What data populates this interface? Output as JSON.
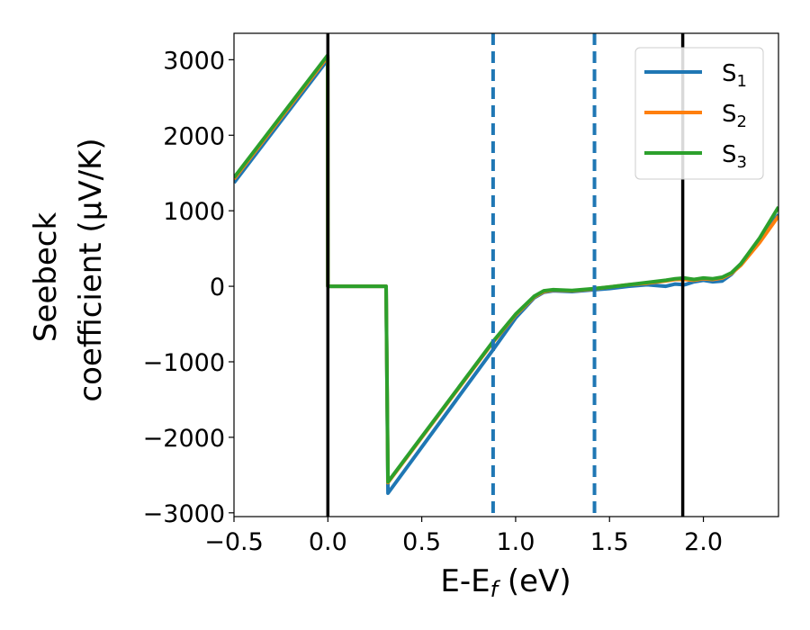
{
  "chart_data": {
    "type": "line",
    "title": "",
    "xlabel": "E-E",
    "xlabel_sub": "f",
    "xlabel_unit": " (eV)",
    "ylabel_line1": "Seebeck",
    "ylabel_line2": "coefficient  (μV/K)",
    "xlim": [
      -0.5,
      2.4
    ],
    "ylim": [
      -3050,
      3350
    ],
    "xticks": [
      -0.5,
      0.0,
      0.5,
      1.0,
      1.5,
      2.0
    ],
    "xtick_labels": [
      "−0.5",
      "0.0",
      "0.5",
      "1.0",
      "1.5",
      "2.0"
    ],
    "yticks": [
      -3000,
      -2000,
      -1000,
      0,
      1000,
      2000,
      3000
    ],
    "ytick_labels": [
      "−3000",
      "−2000",
      "−1000",
      "0",
      "1000",
      "2000",
      "3000"
    ],
    "grid": false,
    "legend_position": "top-right",
    "vlines": [
      {
        "x": 0.0,
        "style": "solid",
        "color": "#000000"
      },
      {
        "x": 1.89,
        "style": "solid",
        "color": "#000000"
      },
      {
        "x": 0.88,
        "style": "dashed",
        "color": "#1f77b4"
      },
      {
        "x": 1.42,
        "style": "dashed",
        "color": "#1f77b4"
      }
    ],
    "series": [
      {
        "name": "S",
        "sub": "1",
        "color": "#1f77b4",
        "x": [
          -0.5,
          -0.001,
          0.0,
          0.3,
          0.31,
          0.32,
          0.88,
          1.0,
          1.1,
          1.15,
          1.2,
          1.3,
          1.4,
          1.5,
          1.6,
          1.7,
          1.8,
          1.85,
          1.9,
          1.95,
          2.0,
          2.05,
          2.1,
          2.15,
          2.2,
          2.3,
          2.4
        ],
        "y": [
          1370,
          3000,
          0,
          0,
          0,
          -2740,
          -840,
          -420,
          -150,
          -80,
          -60,
          -70,
          -50,
          -30,
          0,
          20,
          0,
          30,
          20,
          60,
          80,
          60,
          70,
          160,
          300,
          620,
          950
        ]
      },
      {
        "name": "S",
        "sub": "2",
        "color": "#ff7f0e",
        "x": [
          -0.5,
          -0.001,
          0.0,
          0.3,
          0.31,
          0.32,
          0.88,
          1.0,
          1.1,
          1.15,
          1.2,
          1.3,
          1.4,
          1.5,
          1.6,
          1.7,
          1.8,
          1.85,
          1.9,
          1.95,
          2.0,
          2.05,
          2.1,
          2.15,
          2.2,
          2.3,
          2.4
        ],
        "y": [
          1420,
          3040,
          0,
          0,
          0,
          -2600,
          -740,
          -380,
          -140,
          -70,
          -50,
          -60,
          -40,
          -10,
          20,
          40,
          70,
          90,
          90,
          80,
          100,
          90,
          110,
          170,
          280,
          580,
          930
        ]
      },
      {
        "name": "S",
        "sub": "3",
        "color": "#2ca02c",
        "x": [
          -0.5,
          -0.001,
          0.0,
          0.3,
          0.31,
          0.32,
          0.88,
          1.0,
          1.1,
          1.15,
          1.2,
          1.3,
          1.4,
          1.5,
          1.6,
          1.7,
          1.8,
          1.85,
          1.9,
          1.95,
          2.0,
          2.05,
          2.1,
          2.15,
          2.2,
          2.3,
          2.4
        ],
        "y": [
          1440,
          3060,
          0,
          0,
          0,
          -2590,
          -730,
          -370,
          -130,
          -60,
          -45,
          -55,
          -35,
          -10,
          20,
          50,
          80,
          100,
          110,
          90,
          110,
          100,
          120,
          180,
          300,
          640,
          1050
        ]
      }
    ]
  }
}
